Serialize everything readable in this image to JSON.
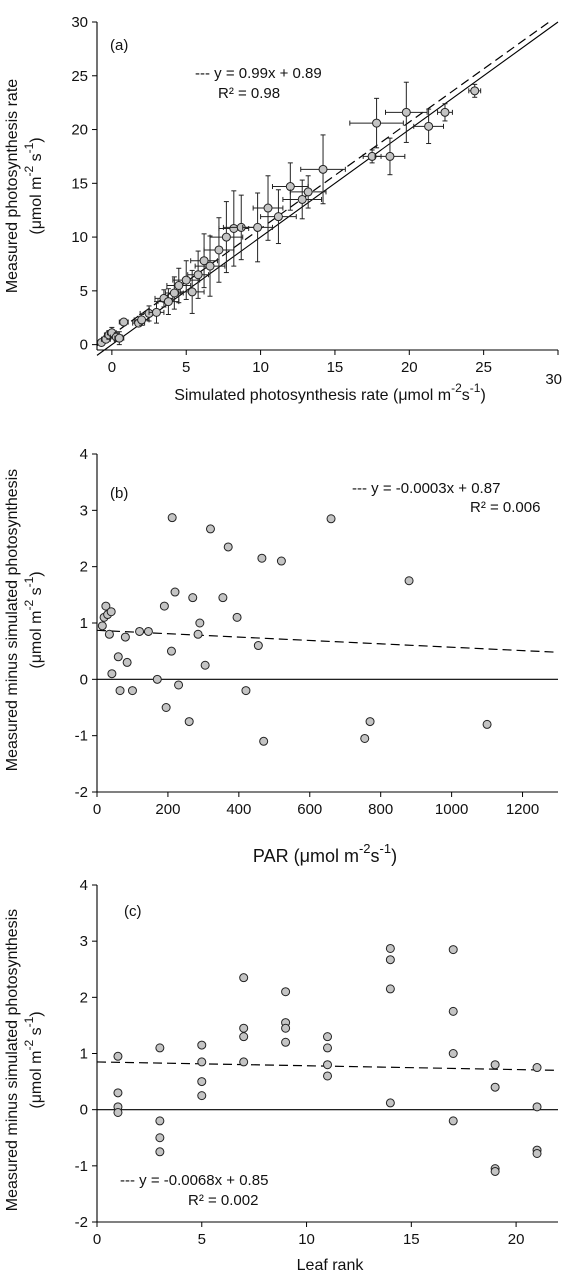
{
  "chart_data": [
    {
      "type": "scatter",
      "panel_label": "(a)",
      "xlabel": "Simulated photosynthesis rate (μmol m-2s-1)",
      "ylabel_line1": "Measured photosynthesis rate",
      "ylabel_line2": "(μmol m-2 s-1)",
      "xlim": [
        -1,
        30
      ],
      "ylim": [
        -0.5,
        30
      ],
      "xticks": [
        0,
        5,
        10,
        15,
        20,
        25,
        30
      ],
      "yticks": [
        0,
        5,
        10,
        15,
        20,
        25,
        30
      ],
      "equation": "--- y = 0.99x + 0.89",
      "r2": "R² = 0.98",
      "fit": {
        "slope": 0.99,
        "intercept": 0.89,
        "style": "dashed"
      },
      "reference": {
        "slope": 1,
        "intercept": 0,
        "style": "solid"
      },
      "points": [
        {
          "x": -0.7,
          "y": 0.2,
          "ex": 0.2,
          "ey": 0.2
        },
        {
          "x": -0.4,
          "y": 0.5,
          "ex": 0.3,
          "ey": 0.3
        },
        {
          "x": -0.2,
          "y": 0.9,
          "ex": 0.3,
          "ey": 0.4
        },
        {
          "x": 0.0,
          "y": 1.1,
          "ex": 0.3,
          "ey": 0.5
        },
        {
          "x": 0.3,
          "y": 0.7,
          "ex": 0.4,
          "ey": 0.4
        },
        {
          "x": 0.5,
          "y": 0.6,
          "ex": 0.3,
          "ey": 0.6
        },
        {
          "x": 0.8,
          "y": 2.1,
          "ex": 0.3,
          "ey": 0.2
        },
        {
          "x": 1.8,
          "y": 2.0,
          "ex": 0.4,
          "ey": 0.3
        },
        {
          "x": 2.0,
          "y": 2.3,
          "ex": 0.5,
          "ey": 0.5
        },
        {
          "x": 2.5,
          "y": 2.9,
          "ex": 0.6,
          "ey": 0.7
        },
        {
          "x": 3.0,
          "y": 3.0,
          "ex": 0.5,
          "ey": 1.0
        },
        {
          "x": 3.5,
          "y": 4.3,
          "ex": 0.6,
          "ey": 0.8
        },
        {
          "x": 3.8,
          "y": 4.0,
          "ex": 0.7,
          "ey": 1.2
        },
        {
          "x": 4.2,
          "y": 4.8,
          "ex": 0.6,
          "ey": 1.5
        },
        {
          "x": 4.5,
          "y": 5.5,
          "ex": 0.8,
          "ey": 1.6
        },
        {
          "x": 5.0,
          "y": 6.0,
          "ex": 0.9,
          "ey": 1.8
        },
        {
          "x": 5.4,
          "y": 4.9,
          "ex": 0.8,
          "ey": 2.0
        },
        {
          "x": 5.8,
          "y": 6.5,
          "ex": 0.7,
          "ey": 2.2
        },
        {
          "x": 6.2,
          "y": 7.8,
          "ex": 0.9,
          "ey": 2.5
        },
        {
          "x": 6.6,
          "y": 7.3,
          "ex": 1.0,
          "ey": 2.8
        },
        {
          "x": 7.2,
          "y": 8.8,
          "ex": 1.0,
          "ey": 3.0
        },
        {
          "x": 7.7,
          "y": 10.0,
          "ex": 1.1,
          "ey": 3.3
        },
        {
          "x": 8.2,
          "y": 10.8,
          "ex": 1.0,
          "ey": 3.5
        },
        {
          "x": 8.7,
          "y": 10.9,
          "ex": 1.2,
          "ey": 3.0
        },
        {
          "x": 9.8,
          "y": 10.9,
          "ex": 1.0,
          "ey": 3.2
        },
        {
          "x": 10.5,
          "y": 12.7,
          "ex": 1.0,
          "ey": 3.0
        },
        {
          "x": 11.2,
          "y": 11.9,
          "ex": 1.2,
          "ey": 2.5
        },
        {
          "x": 12.0,
          "y": 14.7,
          "ex": 1.2,
          "ey": 2.2
        },
        {
          "x": 12.8,
          "y": 13.5,
          "ex": 1.3,
          "ey": 1.8
        },
        {
          "x": 13.2,
          "y": 14.2,
          "ex": 1.2,
          "ey": 1.5
        },
        {
          "x": 14.2,
          "y": 16.3,
          "ex": 1.5,
          "ey": 3.2
        },
        {
          "x": 17.5,
          "y": 17.5,
          "ex": 0.6,
          "ey": 0.6
        },
        {
          "x": 17.8,
          "y": 20.6,
          "ex": 1.8,
          "ey": 2.3
        },
        {
          "x": 18.7,
          "y": 17.5,
          "ex": 1.0,
          "ey": 1.7
        },
        {
          "x": 19.8,
          "y": 21.6,
          "ex": 1.4,
          "ey": 2.8
        },
        {
          "x": 21.3,
          "y": 20.3,
          "ex": 1.0,
          "ey": 1.6
        },
        {
          "x": 22.4,
          "y": 21.6,
          "ex": 0.5,
          "ey": 0.8
        },
        {
          "x": 24.4,
          "y": 23.6,
          "ex": 0.4,
          "ey": 0.6
        }
      ]
    },
    {
      "type": "scatter",
      "panel_label": "(b)",
      "xlabel": "PAR (μmol m-2s-1)",
      "ylabel_line1": "Measured minus simulated photosynthesis",
      "ylabel_line2": "(μmol m-2 s-1)",
      "xlim": [
        0,
        1300
      ],
      "ylim": [
        -2,
        4
      ],
      "xticks": [
        0,
        200,
        400,
        600,
        800,
        1000,
        1200
      ],
      "yticks": [
        -2,
        -1,
        0,
        1,
        2,
        3,
        4
      ],
      "equation": "--- y = -0.0003x + 0.87",
      "r2": "R² = 0.006",
      "fit": {
        "slope": -0.0003,
        "intercept": 0.87,
        "style": "dashed"
      },
      "reference": {
        "y": 0,
        "style": "solid"
      },
      "points": [
        {
          "x": 15,
          "y": 0.95
        },
        {
          "x": 20,
          "y": 1.1
        },
        {
          "x": 25,
          "y": 1.3
        },
        {
          "x": 30,
          "y": 1.15
        },
        {
          "x": 35,
          "y": 0.8
        },
        {
          "x": 40,
          "y": 1.2
        },
        {
          "x": 42,
          "y": 0.1
        },
        {
          "x": 60,
          "y": 0.4
        },
        {
          "x": 65,
          "y": -0.2
        },
        {
          "x": 80,
          "y": 0.75
        },
        {
          "x": 85,
          "y": 0.3
        },
        {
          "x": 100,
          "y": -0.2
        },
        {
          "x": 120,
          "y": 0.85
        },
        {
          "x": 145,
          "y": 0.85
        },
        {
          "x": 170,
          "y": 0.0
        },
        {
          "x": 190,
          "y": 1.3
        },
        {
          "x": 195,
          "y": -0.5
        },
        {
          "x": 210,
          "y": 0.5
        },
        {
          "x": 212,
          "y": 2.87
        },
        {
          "x": 220,
          "y": 1.55
        },
        {
          "x": 230,
          "y": -0.1
        },
        {
          "x": 260,
          "y": -0.75
        },
        {
          "x": 270,
          "y": 1.45
        },
        {
          "x": 285,
          "y": 0.8
        },
        {
          "x": 290,
          "y": 1.0
        },
        {
          "x": 305,
          "y": 0.25
        },
        {
          "x": 320,
          "y": 2.67
        },
        {
          "x": 355,
          "y": 1.45
        },
        {
          "x": 370,
          "y": 2.35
        },
        {
          "x": 395,
          "y": 1.1
        },
        {
          "x": 420,
          "y": -0.2
        },
        {
          "x": 455,
          "y": 0.6
        },
        {
          "x": 465,
          "y": 2.15
        },
        {
          "x": 470,
          "y": -1.1
        },
        {
          "x": 520,
          "y": 2.1
        },
        {
          "x": 660,
          "y": 2.85
        },
        {
          "x": 755,
          "y": -1.05
        },
        {
          "x": 770,
          "y": -0.75
        },
        {
          "x": 880,
          "y": 1.75
        },
        {
          "x": 1100,
          "y": -0.8
        }
      ]
    },
    {
      "type": "scatter",
      "panel_label": "(c)",
      "xlabel": "Leaf rank",
      "ylabel_line1": "Measured minus simulated photosynthesis",
      "ylabel_line2": "(μmol m-2 s-1)",
      "xlim": [
        0,
        22
      ],
      "ylim": [
        -2,
        4
      ],
      "xticks": [
        0,
        5,
        10,
        15,
        20
      ],
      "yticks": [
        -2,
        -1,
        0,
        1,
        2,
        3,
        4
      ],
      "equation": "--- y = -0.0068x + 0.85",
      "r2": "R² = 0.002",
      "fit": {
        "slope": -0.0068,
        "intercept": 0.85,
        "style": "dashed"
      },
      "reference": {
        "y": 0,
        "style": "solid"
      },
      "points": [
        {
          "x": 1,
          "y": 0.95
        },
        {
          "x": 1,
          "y": 0.3
        },
        {
          "x": 1,
          "y": 0.05
        },
        {
          "x": 1,
          "y": -0.05
        },
        {
          "x": 3,
          "y": 1.1
        },
        {
          "x": 3,
          "y": -0.2
        },
        {
          "x": 3,
          "y": -0.5
        },
        {
          "x": 3,
          "y": -0.75
        },
        {
          "x": 5,
          "y": 1.15
        },
        {
          "x": 5,
          "y": 0.85
        },
        {
          "x": 5,
          "y": 0.5
        },
        {
          "x": 5,
          "y": 0.25
        },
        {
          "x": 7,
          "y": 2.35
        },
        {
          "x": 7,
          "y": 1.45
        },
        {
          "x": 7,
          "y": 1.3
        },
        {
          "x": 7,
          "y": 0.85
        },
        {
          "x": 9,
          "y": 2.1
        },
        {
          "x": 9,
          "y": 1.55
        },
        {
          "x": 9,
          "y": 1.45
        },
        {
          "x": 9,
          "y": 1.2
        },
        {
          "x": 11,
          "y": 1.3
        },
        {
          "x": 11,
          "y": 1.1
        },
        {
          "x": 11,
          "y": 0.8
        },
        {
          "x": 11,
          "y": 0.6
        },
        {
          "x": 14,
          "y": 2.87
        },
        {
          "x": 14,
          "y": 2.67
        },
        {
          "x": 14,
          "y": 2.15
        },
        {
          "x": 14,
          "y": 0.12
        },
        {
          "x": 17,
          "y": 2.85
        },
        {
          "x": 17,
          "y": 1.75
        },
        {
          "x": 17,
          "y": 1.0
        },
        {
          "x": 17,
          "y": -0.2
        },
        {
          "x": 19,
          "y": 0.8
        },
        {
          "x": 19,
          "y": 0.4
        },
        {
          "x": 19,
          "y": -1.05
        },
        {
          "x": 19,
          "y": -1.1
        },
        {
          "x": 21,
          "y": 0.75
        },
        {
          "x": 21,
          "y": 0.05
        },
        {
          "x": 21,
          "y": -0.72
        },
        {
          "x": 21,
          "y": -0.78
        }
      ]
    }
  ]
}
